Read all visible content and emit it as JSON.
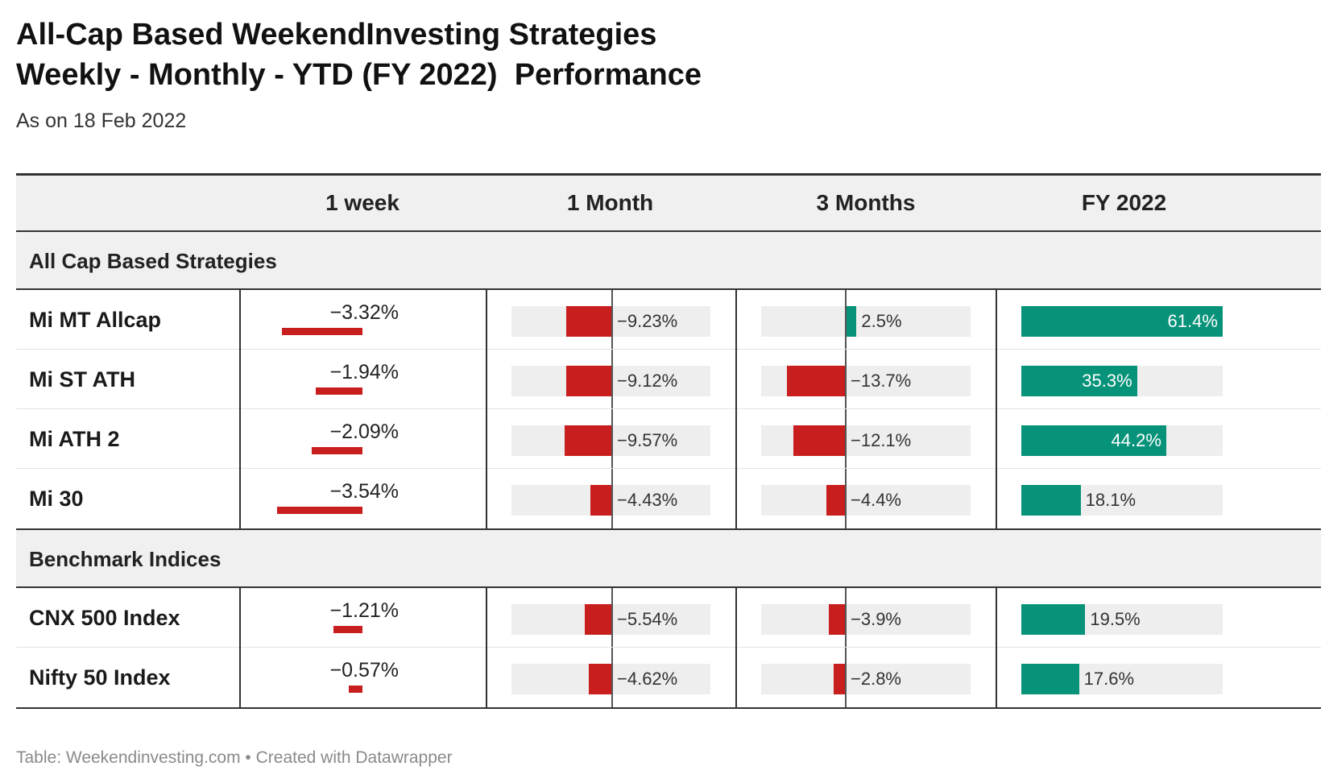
{
  "title_lines": [
    "All-Cap Based WeekendInvesting Strategies",
    "Weekly - Monthly - YTD (FY 2022)  Performance"
  ],
  "subtitle": "As on 18 Feb 2022",
  "footer": "Table: Weekendinvesting.com • Created with Datawrapper",
  "colors": {
    "negative": "#c81e1e",
    "positive": "#07937a",
    "track": "#eeeeee"
  },
  "chart_data": {
    "type": "table",
    "columns": [
      "",
      "1 week",
      "1 Month",
      "3 Months",
      "FY 2022"
    ],
    "groups": [
      {
        "label": "All Cap Based Strategies",
        "rows": [
          {
            "name": "Mi MT Allcap",
            "week": -3.32,
            "month": -9.23,
            "three_months": 2.5,
            "fy2022": 61.4
          },
          {
            "name": "Mi ST ATH",
            "week": -1.94,
            "month": -9.12,
            "three_months": -13.7,
            "fy2022": 35.3
          },
          {
            "name": "Mi ATH 2",
            "week": -2.09,
            "month": -9.57,
            "three_months": -12.1,
            "fy2022": 44.2
          },
          {
            "name": "Mi 30",
            "week": -3.54,
            "month": -4.43,
            "three_months": -4.4,
            "fy2022": 18.1
          }
        ]
      },
      {
        "label": "Benchmark Indices",
        "rows": [
          {
            "name": "CNX 500 Index",
            "week": -1.21,
            "month": -5.54,
            "three_months": -3.9,
            "fy2022": 19.5
          },
          {
            "name": "Nifty 50 Index",
            "week": -0.57,
            "month": -4.62,
            "three_months": -2.8,
            "fy2022": 17.6
          }
        ]
      }
    ],
    "formatted": {
      "week": [
        "−3.32%",
        "−1.94%",
        "−2.09%",
        "−3.54%",
        "−1.21%",
        "−0.57%"
      ],
      "month": [
        "−9.23%",
        "−9.12%",
        "−9.57%",
        "−4.43%",
        "−5.54%",
        "−4.62%"
      ],
      "three_months": [
        "2.5%",
        "−13.7%",
        "−12.1%",
        "−4.4%",
        "−3.9%",
        "−2.8%"
      ],
      "fy2022": [
        "61.4%",
        "35.3%",
        "44.2%",
        "18.1%",
        "19.5%",
        "17.6%"
      ]
    }
  }
}
